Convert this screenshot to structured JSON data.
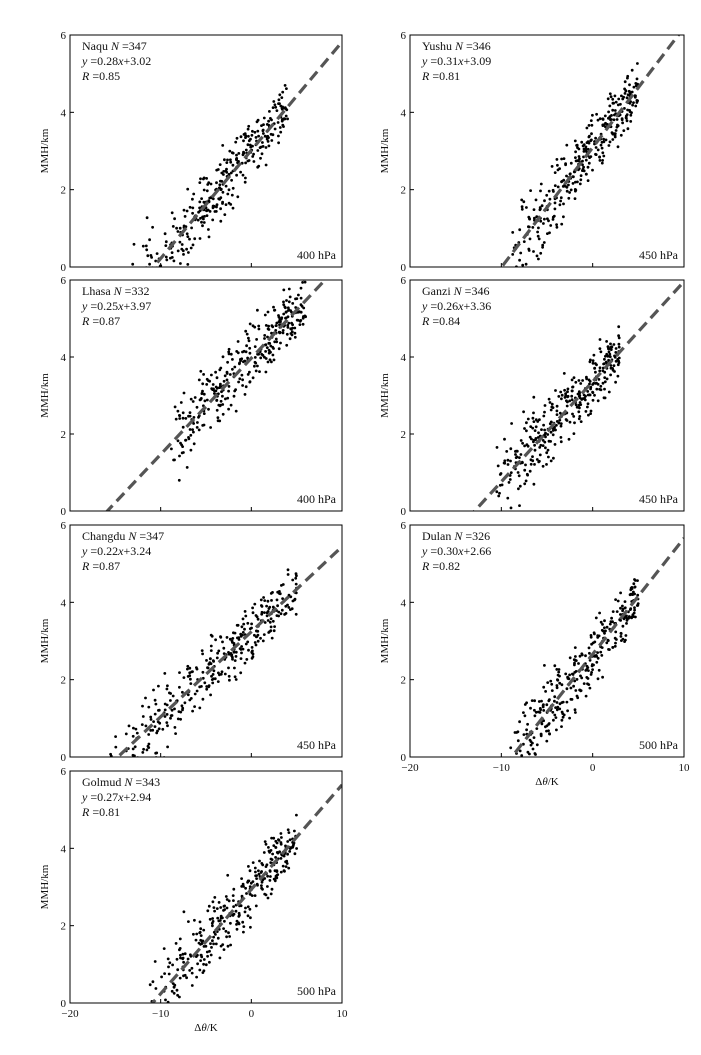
{
  "chart_data": [
    {
      "type": "scatter",
      "station": "Naqu",
      "n_label": "N",
      "n_value": "=347",
      "eq_y": "y",
      "eq_rest": "=0.28",
      "eq_x": "x",
      "eq_tail": "+3.02",
      "r_label": "R",
      "r_value": "=0.85",
      "pressure": "400 hPa",
      "fit": {
        "slope": 0.28,
        "intercept": 3.02
      },
      "ylabel": "MMH/km",
      "xlabel": "",
      "xlim": [
        -20,
        10
      ],
      "ylim": [
        0,
        6
      ],
      "yticks": [
        "0",
        "2",
        "4",
        "6"
      ],
      "xticks": [],
      "x_range": [
        -14,
        4
      ],
      "seed": 11
    },
    {
      "type": "scatter",
      "station": "Yushu",
      "n_label": "N",
      "n_value": "=346",
      "eq_y": "y",
      "eq_rest": "=0.31",
      "eq_x": "x",
      "eq_tail": "+3.09",
      "r_label": "R",
      "r_value": "=0.81",
      "pressure": "450 hPa",
      "fit": {
        "slope": 0.31,
        "intercept": 3.09
      },
      "ylabel": "MMH/km",
      "xlabel": "",
      "xlim": [
        -20,
        10
      ],
      "ylim": [
        0,
        6
      ],
      "yticks": [
        "0",
        "2",
        "4",
        "6"
      ],
      "xticks": [],
      "x_range": [
        -9,
        5
      ],
      "seed": 23
    },
    {
      "type": "scatter",
      "station": "Lhasa",
      "n_label": "N",
      "n_value": "=332",
      "eq_y": "y",
      "eq_rest": "=0.25",
      "eq_x": "x",
      "eq_tail": "+3.97",
      "r_label": "R",
      "r_value": "=0.87",
      "pressure": "400 hPa",
      "fit": {
        "slope": 0.25,
        "intercept": 3.97
      },
      "ylabel": "MMH/km",
      "xlabel": "",
      "xlim": [
        -20,
        10
      ],
      "ylim": [
        0,
        6
      ],
      "yticks": [
        "0",
        "2",
        "4",
        "6"
      ],
      "xticks": [],
      "x_range": [
        -9,
        6
      ],
      "seed": 37
    },
    {
      "type": "scatter",
      "station": "Ganzi",
      "n_label": "N",
      "n_value": "=346",
      "eq_y": "y",
      "eq_rest": "=0.26",
      "eq_x": "x",
      "eq_tail": "+3.36",
      "r_label": "R",
      "r_value": "=0.84",
      "pressure": "450 hPa",
      "fit": {
        "slope": 0.26,
        "intercept": 3.36
      },
      "ylabel": "MMH/km",
      "xlabel": "",
      "xlim": [
        -20,
        10
      ],
      "ylim": [
        0,
        6
      ],
      "yticks": [
        "0",
        "2",
        "4",
        "6"
      ],
      "xticks": [],
      "x_range": [
        -11,
        3
      ],
      "seed": 41
    },
    {
      "type": "scatter",
      "station": "Changdu",
      "n_label": "N",
      "n_value": "=347",
      "eq_y": "y",
      "eq_rest": "=0.22",
      "eq_x": "x",
      "eq_tail": "+3.24",
      "r_label": "R",
      "r_value": "=0.87",
      "pressure": "450 hPa",
      "fit": {
        "slope": 0.22,
        "intercept": 3.24
      },
      "ylabel": "MMH/km",
      "xlabel": "",
      "xlim": [
        -20,
        10
      ],
      "ylim": [
        0,
        6
      ],
      "yticks": [
        "0",
        "2",
        "4",
        "6"
      ],
      "xticks": [],
      "x_range": [
        -16,
        5
      ],
      "seed": 53
    },
    {
      "type": "scatter",
      "station": "Dulan",
      "n_label": "N",
      "n_value": "=326",
      "eq_y": "y",
      "eq_rest": "=0.30",
      "eq_x": "x",
      "eq_tail": "+2.66",
      "r_label": "R",
      "r_value": "=0.82",
      "pressure": "500 hPa",
      "fit": {
        "slope": 0.3,
        "intercept": 2.66
      },
      "ylabel": "MMH/km",
      "xlabel": "Δθ/K",
      "xlim": [
        -20,
        10
      ],
      "ylim": [
        0,
        6
      ],
      "yticks": [
        "0",
        "2",
        "4",
        "6"
      ],
      "xticks": [
        "−20",
        "−10",
        "0",
        "10"
      ],
      "x_range": [
        -9,
        5
      ],
      "seed": 67
    },
    {
      "type": "scatter",
      "station": "Golmud",
      "n_label": "N",
      "n_value": "=343",
      "eq_y": "y",
      "eq_rest": "=0.27",
      "eq_x": "x",
      "eq_tail": "+2.94",
      "r_label": "R",
      "r_value": "=0.81",
      "pressure": "500 hPa",
      "fit": {
        "slope": 0.27,
        "intercept": 2.94
      },
      "ylabel": "MMH/km",
      "xlabel": "Δθ/K",
      "xlim": [
        -20,
        10
      ],
      "ylim": [
        0,
        6
      ],
      "yticks": [
        "0",
        "2",
        "4",
        "6"
      ],
      "xticks": [
        "−20",
        "−10",
        "0",
        "10"
      ],
      "x_range": [
        -12,
        5
      ],
      "seed": 79
    }
  ]
}
